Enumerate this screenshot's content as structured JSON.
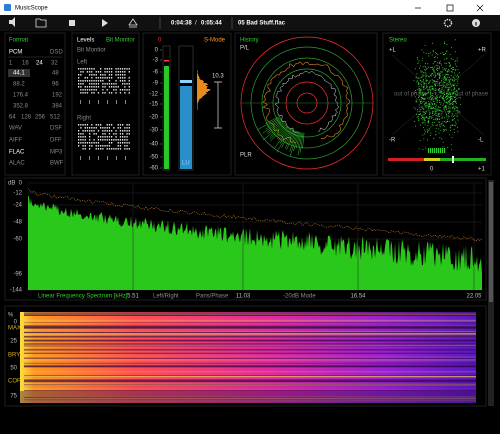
{
  "window": {
    "title": "MusicScope"
  },
  "toolbar": {
    "elapsed": "0:04:38",
    "separator": "/",
    "total": "0:05:44",
    "file": "05 Bad Stuff.flac"
  },
  "format": {
    "title": "Format",
    "pcm": "PCM",
    "dsd": "DSD",
    "bit_depths": [
      "1",
      "16",
      "24",
      "32"
    ],
    "rates": [
      [
        "44.1",
        "48"
      ],
      [
        "88.2",
        "96"
      ],
      [
        "176.4",
        "192"
      ],
      [
        "352.8",
        "384"
      ]
    ],
    "dsd_rates": [
      "64",
      "128",
      "256",
      "512"
    ],
    "containers": [
      [
        "WAV",
        "DSF"
      ],
      [
        "AIFF",
        "DFF"
      ],
      [
        "FLAC",
        "MP3"
      ],
      [
        "ALAC",
        "BWF"
      ]
    ]
  },
  "levels": {
    "title": "Levels",
    "mode": "Bit Monitor",
    "subtitle": "Bit Monitor",
    "left": "Left",
    "right": "Right"
  },
  "meter": {
    "peak": "0",
    "mode": "S-Mode",
    "scale": [
      "0",
      "-3",
      "-6",
      "-9",
      "-12",
      "-15",
      "-20",
      "-30",
      "-40",
      "-50",
      "-60"
    ],
    "loudness": "10.3",
    "unit": "LU"
  },
  "history": {
    "title": "History",
    "top_label": "P/L",
    "bottom_label": "PLR"
  },
  "stereo": {
    "title": "Stereo",
    "plus_l": "+L",
    "plus_r": "+R",
    "minus_r": "-R",
    "minus_l": "-L",
    "phase_left": "out of phase",
    "phase_right": "out of phase",
    "corr_zero": "0",
    "corr_plus": "+1"
  },
  "spectrum": {
    "unit": "dB",
    "yticks": [
      "0",
      "-12",
      "-24",
      "-48",
      "-60",
      "-96",
      "-144"
    ],
    "xlabel": "Linear Frequency Spectrum [kHz]",
    "xticks": [
      "5.51",
      "11.03",
      "16.54",
      "22.05"
    ],
    "modes": [
      "Left/Right",
      "Pans/Phase",
      "-20dB Mode"
    ]
  },
  "spectrogram": {
    "unit": "%",
    "ticks": [
      "0",
      "25",
      "50",
      "75"
    ],
    "markers": [
      "MAX",
      "BRY",
      "COF"
    ]
  }
}
